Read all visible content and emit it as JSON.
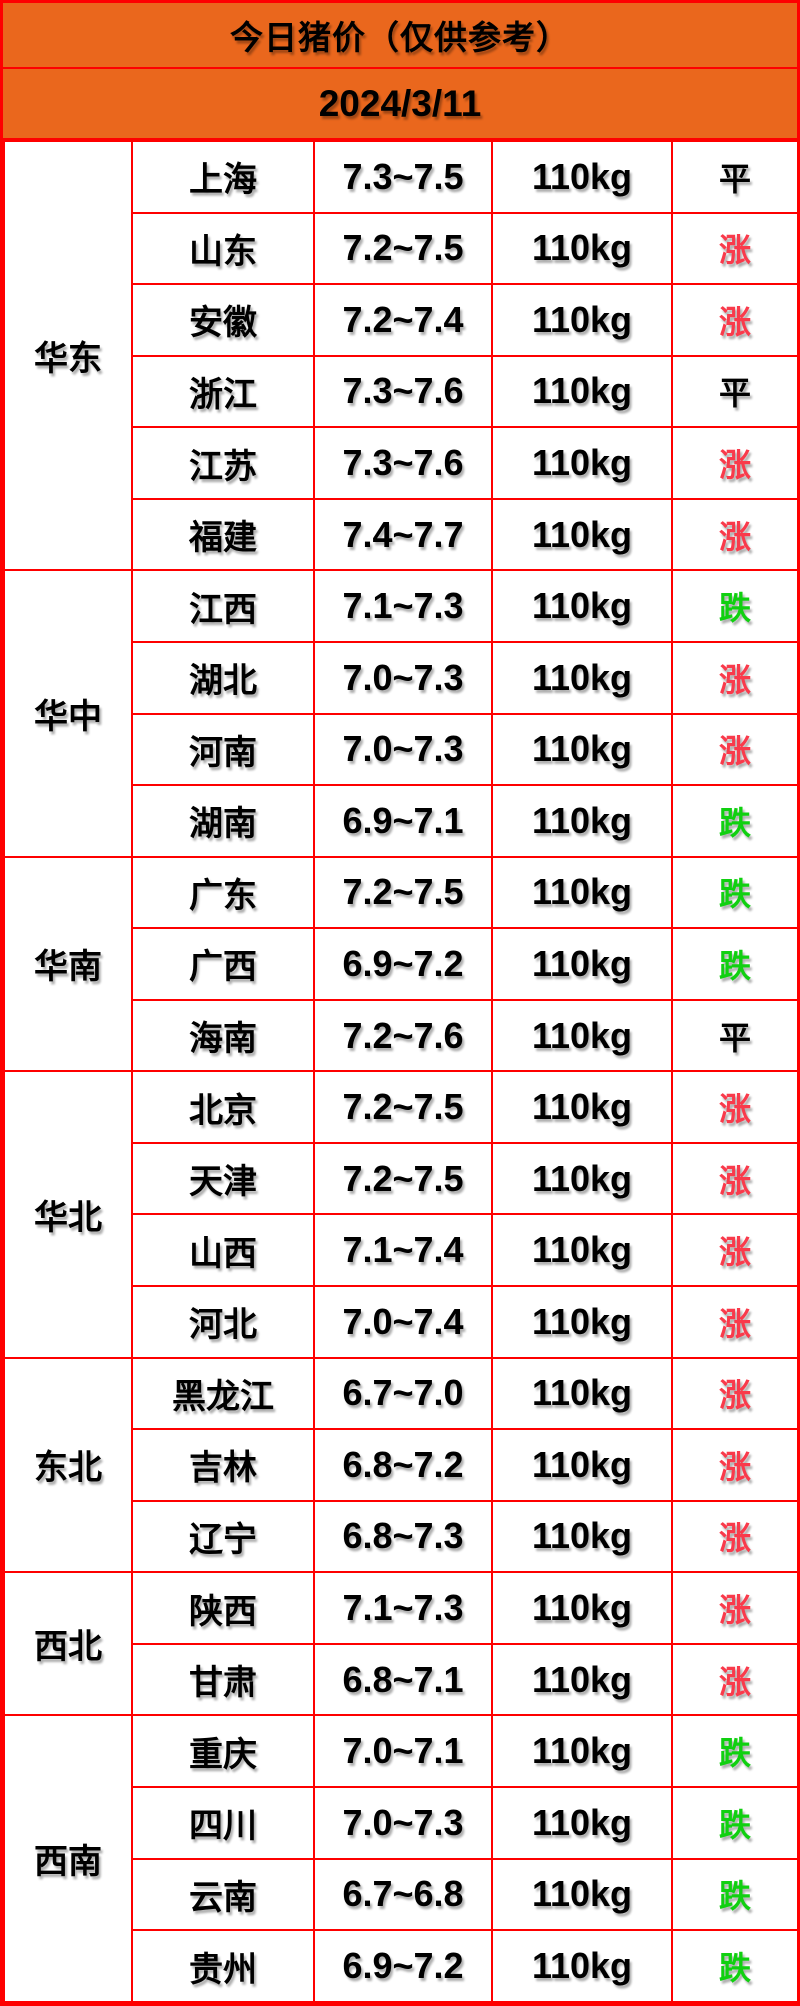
{
  "colors": {
    "accent_orange": "#EA671D",
    "grid_red": "#FE0000",
    "up_red": "#F93A4B",
    "down_green": "#10D010",
    "flat_black": "#000000"
  },
  "chart_data": {
    "type": "table",
    "title": "今日猪价（仅供参考）",
    "date": "2024/3/11",
    "layout_hint": "rows grouped by region with merged region cell; columns: region, province, price range (yuan/jin), weight, trend; trend color: 涨=red, 跌=green, 平=black",
    "groups": [
      {
        "region": "华东",
        "rows": [
          {
            "province": "上海",
            "price": "7.3~7.5",
            "weight": "110kg",
            "trend": "平",
            "trend_type": "flat"
          },
          {
            "province": "山东",
            "price": "7.2~7.5",
            "weight": "110kg",
            "trend": "涨",
            "trend_type": "up"
          },
          {
            "province": "安徽",
            "price": "7.2~7.4",
            "weight": "110kg",
            "trend": "涨",
            "trend_type": "up"
          },
          {
            "province": "浙江",
            "price": "7.3~7.6",
            "weight": "110kg",
            "trend": "平",
            "trend_type": "flat"
          },
          {
            "province": "江苏",
            "price": "7.3~7.6",
            "weight": "110kg",
            "trend": "涨",
            "trend_type": "up"
          },
          {
            "province": "福建",
            "price": "7.4~7.7",
            "weight": "110kg",
            "trend": "涨",
            "trend_type": "up"
          }
        ]
      },
      {
        "region": "华中",
        "rows": [
          {
            "province": "江西",
            "price": "7.1~7.3",
            "weight": "110kg",
            "trend": "跌",
            "trend_type": "down"
          },
          {
            "province": "湖北",
            "price": "7.0~7.3",
            "weight": "110kg",
            "trend": "涨",
            "trend_type": "up"
          },
          {
            "province": "河南",
            "price": "7.0~7.3",
            "weight": "110kg",
            "trend": "涨",
            "trend_type": "up"
          },
          {
            "province": "湖南",
            "price": "6.9~7.1",
            "weight": "110kg",
            "trend": "跌",
            "trend_type": "down"
          }
        ]
      },
      {
        "region": "华南",
        "rows": [
          {
            "province": "广东",
            "price": "7.2~7.5",
            "weight": "110kg",
            "trend": "跌",
            "trend_type": "down"
          },
          {
            "province": "广西",
            "price": "6.9~7.2",
            "weight": "110kg",
            "trend": "跌",
            "trend_type": "down"
          },
          {
            "province": "海南",
            "price": "7.2~7.6",
            "weight": "110kg",
            "trend": "平",
            "trend_type": "flat"
          }
        ]
      },
      {
        "region": "华北",
        "rows": [
          {
            "province": "北京",
            "price": "7.2~7.5",
            "weight": "110kg",
            "trend": "涨",
            "trend_type": "up"
          },
          {
            "province": "天津",
            "price": "7.2~7.5",
            "weight": "110kg",
            "trend": "涨",
            "trend_type": "up"
          },
          {
            "province": "山西",
            "price": "7.1~7.4",
            "weight": "110kg",
            "trend": "涨",
            "trend_type": "up"
          },
          {
            "province": "河北",
            "price": "7.0~7.4",
            "weight": "110kg",
            "trend": "涨",
            "trend_type": "up"
          }
        ]
      },
      {
        "region": "东北",
        "rows": [
          {
            "province": "黑龙江",
            "price": "6.7~7.0",
            "weight": "110kg",
            "trend": "涨",
            "trend_type": "up"
          },
          {
            "province": "吉林",
            "price": "6.8~7.2",
            "weight": "110kg",
            "trend": "涨",
            "trend_type": "up"
          },
          {
            "province": "辽宁",
            "price": "6.8~7.3",
            "weight": "110kg",
            "trend": "涨",
            "trend_type": "up"
          }
        ]
      },
      {
        "region": "西北",
        "rows": [
          {
            "province": "陕西",
            "price": "7.1~7.3",
            "weight": "110kg",
            "trend": "涨",
            "trend_type": "up"
          },
          {
            "province": "甘肃",
            "price": "6.8~7.1",
            "weight": "110kg",
            "trend": "涨",
            "trend_type": "up"
          }
        ]
      },
      {
        "region": "西南",
        "rows": [
          {
            "province": "重庆",
            "price": "7.0~7.1",
            "weight": "110kg",
            "trend": "跌",
            "trend_type": "down"
          },
          {
            "province": "四川",
            "price": "7.0~7.3",
            "weight": "110kg",
            "trend": "跌",
            "trend_type": "down"
          },
          {
            "province": "云南",
            "price": "6.7~6.8",
            "weight": "110kg",
            "trend": "跌",
            "trend_type": "down"
          },
          {
            "province": "贵州",
            "price": "6.9~7.2",
            "weight": "110kg",
            "trend": "跌",
            "trend_type": "down"
          }
        ]
      }
    ]
  }
}
